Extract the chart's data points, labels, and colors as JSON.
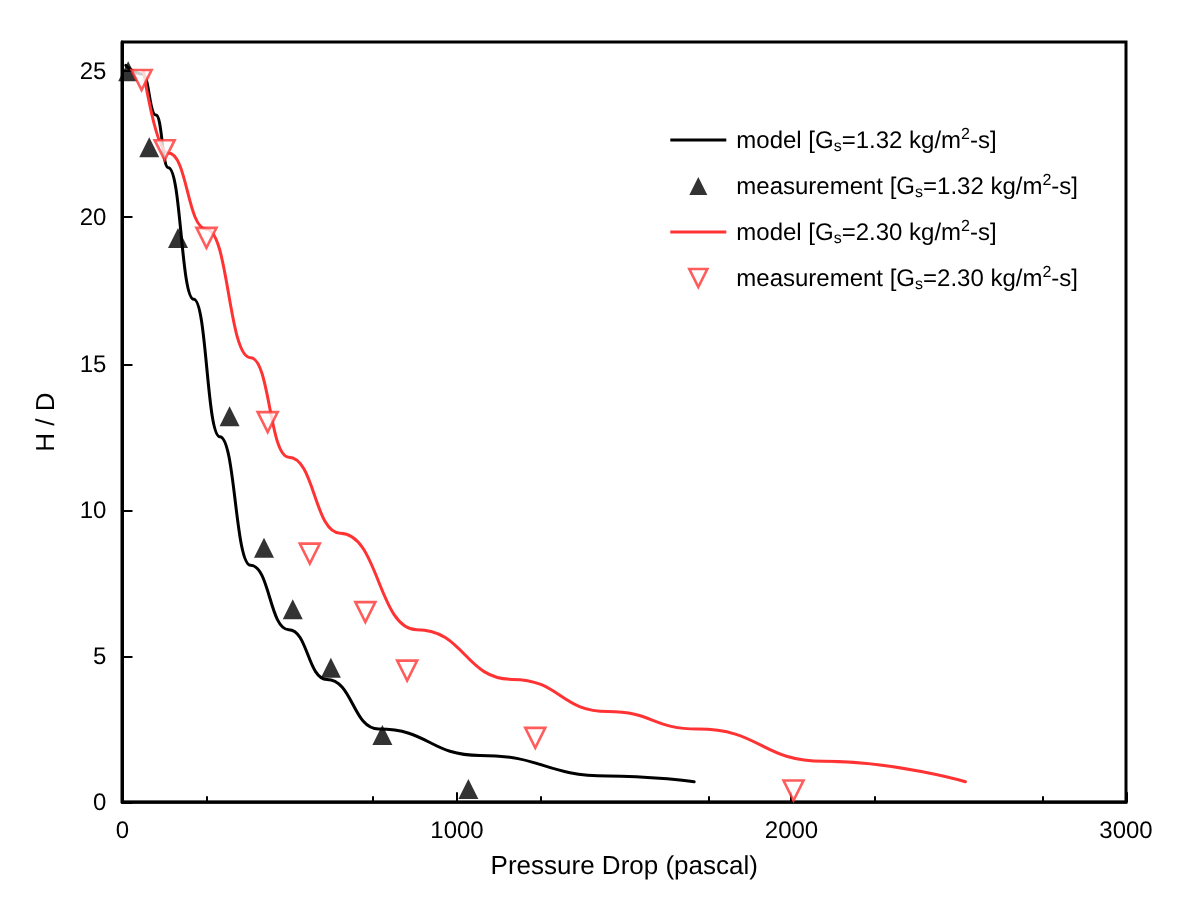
{
  "chart_data": {
    "type": "line",
    "xlabel": "Pressure Drop (pascal)",
    "ylabel": "H / D",
    "xlim": [
      0,
      3000
    ],
    "ylim": [
      0,
      26
    ],
    "xticks": [
      0,
      1000,
      2000,
      3000
    ],
    "yticks": [
      0,
      5,
      10,
      15,
      20,
      25
    ],
    "grid": false,
    "legend": "top right",
    "series": [
      {
        "name": "model [G$_{s}$=1.32 kg/m$^{2}$-s]",
        "color": "#000000",
        "line_style": "solid",
        "marker": "none",
        "x": [
          10,
          60,
          100,
          137,
          213,
          291,
          383,
          497,
          611,
          766,
          1069,
          1451,
          1709
        ],
        "values": [
          25.2,
          24.9,
          23.5,
          21.7,
          17.2,
          12.5,
          8.1,
          5.9,
          4.2,
          2.5,
          1.6,
          0.9,
          0.7
        ]
      },
      {
        "name": "measurement [G$_{s}$=1.32 kg/m$^{2}$-s]",
        "type": "scatter",
        "color": "#000000",
        "marker": "triangle",
        "x": [
          17,
          80,
          166,
          320,
          423,
          509,
          623,
          777,
          1034
        ],
        "values": [
          25,
          22.4,
          19.3,
          13.2,
          8.7,
          6.6,
          4.6,
          2.3,
          0.45
        ]
      },
      {
        "name": "model [G$_{s}$=2.30 kg/m$^{2}$-s]",
        "color": "#ff3333",
        "line_style": "solid",
        "marker": "none",
        "x": [
          63,
          137,
          251,
          383,
          497,
          651,
          880,
          1166,
          1451,
          1720,
          2097,
          2520
        ],
        "values": [
          25,
          22.2,
          19.6,
          15.2,
          11.8,
          9.2,
          5.9,
          4.2,
          3.1,
          2.5,
          1.4,
          0.7
        ]
      },
      {
        "name": "measurement [G$_{s}$=2.30 kg/m$^{2}$-s]",
        "type": "scatter",
        "color": "#ff3333",
        "marker": "triangle_down",
        "x": [
          57,
          126,
          251,
          434,
          560,
          726,
          851,
          1234,
          2006
        ],
        "values": [
          24.7,
          22.3,
          19.3,
          13.0,
          8.5,
          6.5,
          4.5,
          2.2,
          0.4
        ]
      }
    ]
  }
}
